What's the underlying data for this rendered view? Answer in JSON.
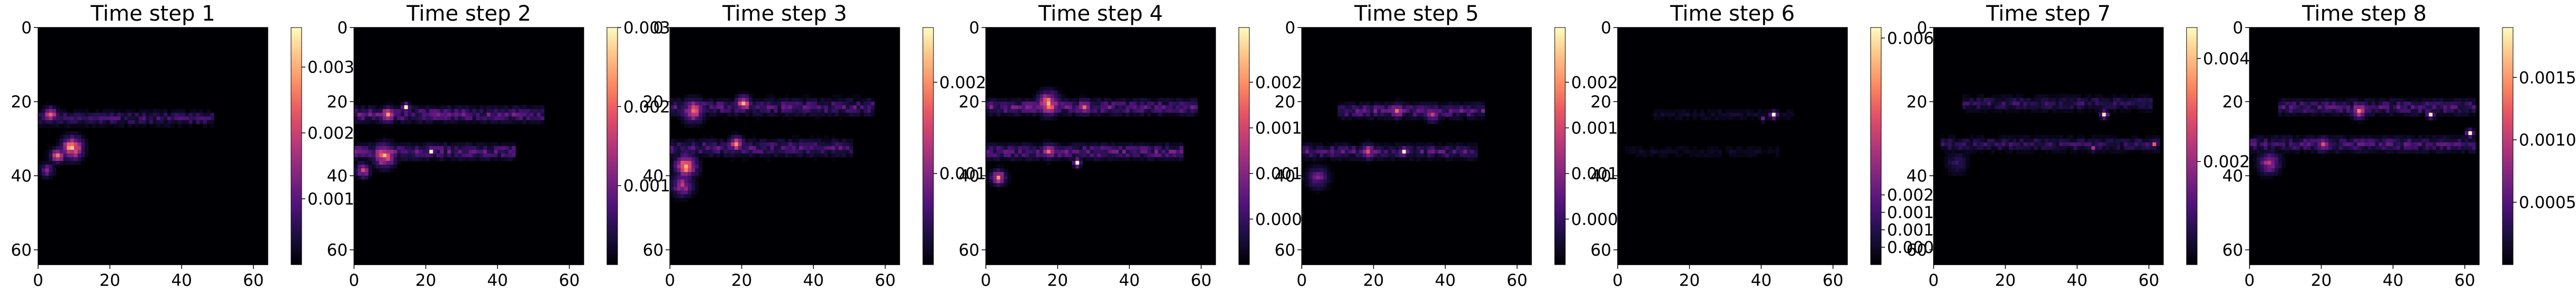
{
  "chart_data": [
    {
      "type": "heatmap",
      "title": "Time step 1",
      "colormap": "magma",
      "xlim": [
        0,
        64
      ],
      "ylim": [
        64,
        0
      ],
      "xticks": [
        0,
        20,
        40,
        60
      ],
      "yticks": [
        0,
        20,
        40,
        60
      ],
      "colorbar": {
        "ticks": [
          0.001,
          0.002,
          0.003
        ],
        "tick_labels": [
          "0.001",
          "0.002",
          "0.003"
        ],
        "max": 0.0036
      },
      "features": [
        {
          "kind": "band",
          "row": 24,
          "col_start": 0,
          "col_end": 48,
          "sigma": 1.2,
          "peak": 0.0008
        },
        {
          "kind": "blob",
          "row": 23,
          "col": 3,
          "value": 0.0024,
          "radius": 2
        },
        {
          "kind": "blob",
          "row": 32,
          "col": 9,
          "value": 0.0032,
          "radius": 3
        },
        {
          "kind": "blob",
          "row": 34,
          "col": 5,
          "value": 0.0026,
          "radius": 2
        },
        {
          "kind": "blob",
          "row": 38,
          "col": 2,
          "value": 0.0014,
          "radius": 2
        }
      ]
    },
    {
      "type": "heatmap",
      "title": "Time step 2",
      "colormap": "magma",
      "xlim": [
        0,
        64
      ],
      "ylim": [
        64,
        0
      ],
      "xticks": [
        0,
        20,
        40,
        60
      ],
      "yticks": [
        0,
        20,
        40,
        60
      ],
      "colorbar": {
        "ticks": [
          0.001,
          0.002,
          0.003
        ],
        "tick_labels": [
          "0.001",
          "0.002",
          "0.003"
        ],
        "max": 0.003
      },
      "features": [
        {
          "kind": "band",
          "row": 23,
          "col_start": 0,
          "col_end": 52,
          "sigma": 1.3,
          "peak": 0.0009
        },
        {
          "kind": "band",
          "row": 33,
          "col_start": 0,
          "col_end": 44,
          "sigma": 1.3,
          "peak": 0.0009
        },
        {
          "kind": "blob",
          "row": 23,
          "col": 9,
          "value": 0.0024,
          "radius": 2
        },
        {
          "kind": "blob",
          "row": 21,
          "col": 14,
          "value": 0.003,
          "radius": 1
        },
        {
          "kind": "blob",
          "row": 34,
          "col": 8,
          "value": 0.0026,
          "radius": 3
        },
        {
          "kind": "blob",
          "row": 33,
          "col": 21,
          "value": 0.003,
          "radius": 1
        },
        {
          "kind": "blob",
          "row": 38,
          "col": 2,
          "value": 0.0018,
          "radius": 2
        }
      ]
    },
    {
      "type": "heatmap",
      "title": "Time step 3",
      "colormap": "magma",
      "xlim": [
        0,
        64
      ],
      "ylim": [
        64,
        0
      ],
      "xticks": [
        0,
        20,
        40,
        60
      ],
      "yticks": [
        0,
        20,
        40,
        60
      ],
      "colorbar": {
        "ticks": [
          0.001,
          0.002
        ],
        "tick_labels": [
          "0.001",
          "0.002"
        ],
        "max": 0.0026
      },
      "features": [
        {
          "kind": "band",
          "row": 21,
          "col_start": 0,
          "col_end": 56,
          "sigma": 1.4,
          "peak": 0.0007
        },
        {
          "kind": "band",
          "row": 32,
          "col_start": 0,
          "col_end": 50,
          "sigma": 1.4,
          "peak": 0.0007
        },
        {
          "kind": "blob",
          "row": 22,
          "col": 6,
          "value": 0.0018,
          "radius": 3
        },
        {
          "kind": "blob",
          "row": 20,
          "col": 20,
          "value": 0.0022,
          "radius": 2
        },
        {
          "kind": "blob",
          "row": 31,
          "col": 18,
          "value": 0.002,
          "radius": 2
        },
        {
          "kind": "blob",
          "row": 37,
          "col": 4,
          "value": 0.0022,
          "radius": 3
        },
        {
          "kind": "blob",
          "row": 42,
          "col": 3,
          "value": 0.0014,
          "radius": 3
        }
      ]
    },
    {
      "type": "heatmap",
      "title": "Time step 4",
      "colormap": "magma",
      "xlim": [
        0,
        64
      ],
      "ylim": [
        64,
        0
      ],
      "xticks": [
        0,
        20,
        40,
        60
      ],
      "yticks": [
        0,
        20,
        40,
        60
      ],
      "colorbar": {
        "ticks": [
          0.0005,
          0.001,
          0.0015,
          0.002
        ],
        "tick_labels": [
          "0.000",
          "0.001",
          "0.001",
          "0.002"
        ],
        "max": 0.0026
      },
      "features": [
        {
          "kind": "band",
          "row": 21,
          "col_start": 0,
          "col_end": 58,
          "sigma": 1.3,
          "peak": 0.0008
        },
        {
          "kind": "band",
          "row": 33,
          "col_start": 0,
          "col_end": 54,
          "sigma": 1.3,
          "peak": 0.0008
        },
        {
          "kind": "blob",
          "row": 20,
          "col": 17,
          "value": 0.0022,
          "radius": 3
        },
        {
          "kind": "blob",
          "row": 21,
          "col": 27,
          "value": 0.0018,
          "radius": 2
        },
        {
          "kind": "blob",
          "row": 33,
          "col": 17,
          "value": 0.0018,
          "radius": 2
        },
        {
          "kind": "blob",
          "row": 36,
          "col": 25,
          "value": 0.0026,
          "radius": 1
        },
        {
          "kind": "blob",
          "row": 40,
          "col": 3,
          "value": 0.002,
          "radius": 2
        }
      ]
    },
    {
      "type": "heatmap",
      "title": "Time step 5",
      "colormap": "magma",
      "xlim": [
        0,
        64
      ],
      "ylim": [
        64,
        0
      ],
      "xticks": [
        0,
        20,
        40,
        60
      ],
      "yticks": [
        0,
        20,
        40,
        60
      ],
      "colorbar": {
        "ticks": [
          0.0005,
          0.001,
          0.0015,
          0.002
        ],
        "tick_labels": [
          "0.000",
          "0.001",
          "0.001",
          "0.002"
        ],
        "max": 0.0026
      },
      "features": [
        {
          "kind": "band",
          "row": 22,
          "col_start": 10,
          "col_end": 50,
          "sigma": 1.2,
          "peak": 0.0008
        },
        {
          "kind": "band",
          "row": 33,
          "col_start": 0,
          "col_end": 48,
          "sigma": 1.2,
          "peak": 0.0007
        },
        {
          "kind": "blob",
          "row": 22,
          "col": 26,
          "value": 0.0018,
          "radius": 2
        },
        {
          "kind": "blob",
          "row": 23,
          "col": 36,
          "value": 0.0014,
          "radius": 2
        },
        {
          "kind": "blob",
          "row": 33,
          "col": 18,
          "value": 0.0016,
          "radius": 2
        },
        {
          "kind": "blob",
          "row": 33,
          "col": 28,
          "value": 0.0026,
          "radius": 1
        },
        {
          "kind": "blob",
          "row": 40,
          "col": 4,
          "value": 0.001,
          "radius": 3
        }
      ]
    },
    {
      "type": "heatmap",
      "title": "Time step 6",
      "colormap": "magma",
      "xlim": [
        0,
        64
      ],
      "ylim": [
        64,
        0
      ],
      "xticks": [
        0,
        20,
        40,
        60
      ],
      "yticks": [
        0,
        20,
        40,
        60
      ],
      "colorbar": {
        "ticks": [
          0.0005,
          0.001,
          0.0015,
          0.002,
          0.0065
        ],
        "tick_labels": [
          "0.000",
          "0.001",
          "0.001",
          "0.002",
          "0.006"
        ],
        "max": 0.0068
      },
      "features": [
        {
          "kind": "band",
          "row": 23,
          "col_start": 10,
          "col_end": 48,
          "sigma": 1.0,
          "peak": 0.0006
        },
        {
          "kind": "band",
          "row": 33,
          "col_start": 2,
          "col_end": 44,
          "sigma": 1.0,
          "peak": 0.0005
        },
        {
          "kind": "blob",
          "row": 23,
          "col": 43,
          "value": 0.0068,
          "radius": 1
        },
        {
          "kind": "blob",
          "row": 24,
          "col": 40,
          "value": 0.0022,
          "radius": 1
        }
      ]
    },
    {
      "type": "heatmap",
      "title": "Time step 7",
      "colormap": "magma",
      "xlim": [
        0,
        64
      ],
      "ylim": [
        64,
        0
      ],
      "xticks": [
        0,
        20,
        40,
        60
      ],
      "yticks": [
        0,
        20,
        40,
        60
      ],
      "colorbar": {
        "ticks": [
          0.002,
          0.004
        ],
        "tick_labels": [
          "0.002",
          "0.004"
        ],
        "max": 0.0046
      },
      "features": [
        {
          "kind": "band",
          "row": 20,
          "col_start": 8,
          "col_end": 60,
          "sigma": 1.2,
          "peak": 0.0009
        },
        {
          "kind": "band",
          "row": 31,
          "col_start": 2,
          "col_end": 62,
          "sigma": 1.2,
          "peak": 0.0009
        },
        {
          "kind": "blob",
          "row": 23,
          "col": 47,
          "value": 0.0044,
          "radius": 1
        },
        {
          "kind": "blob",
          "row": 31,
          "col": 61,
          "value": 0.003,
          "radius": 1
        },
        {
          "kind": "blob",
          "row": 32,
          "col": 44,
          "value": 0.0022,
          "radius": 1
        },
        {
          "kind": "blob",
          "row": 36,
          "col": 6,
          "value": 0.001,
          "radius": 3
        }
      ]
    },
    {
      "type": "heatmap",
      "title": "Time step 8",
      "colormap": "magma",
      "xlim": [
        0,
        64
      ],
      "ylim": [
        64,
        0
      ],
      "xticks": [
        0,
        20,
        40,
        60
      ],
      "yticks": [
        0,
        20,
        40,
        60
      ],
      "colorbar": {
        "ticks": [
          0.0005,
          0.001,
          0.0015
        ],
        "tick_labels": [
          "0.0005",
          "0.0010",
          "0.0015"
        ],
        "max": 0.0019
      },
      "features": [
        {
          "kind": "band",
          "row": 21,
          "col_start": 8,
          "col_end": 62,
          "sigma": 1.3,
          "peak": 0.0005
        },
        {
          "kind": "band",
          "row": 31,
          "col_start": 0,
          "col_end": 62,
          "sigma": 1.3,
          "peak": 0.0005
        },
        {
          "kind": "blob",
          "row": 22,
          "col": 30,
          "value": 0.0014,
          "radius": 2
        },
        {
          "kind": "blob",
          "row": 23,
          "col": 50,
          "value": 0.0018,
          "radius": 1
        },
        {
          "kind": "blob",
          "row": 31,
          "col": 20,
          "value": 0.0012,
          "radius": 2
        },
        {
          "kind": "blob",
          "row": 28,
          "col": 61,
          "value": 0.0019,
          "radius": 1
        },
        {
          "kind": "blob",
          "row": 36,
          "col": 5,
          "value": 0.001,
          "radius": 3
        }
      ]
    }
  ]
}
